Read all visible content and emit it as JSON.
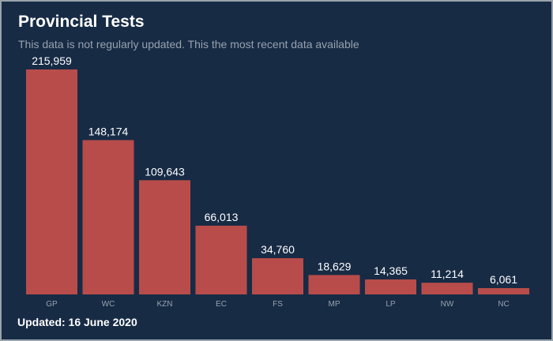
{
  "title": "Provincial Tests",
  "subtitle": "This data is not regularly updated. This the most recent data available",
  "footer": "Updated: 16 June 2020",
  "colors": {
    "background": "#172b45",
    "bar": "#b84c4a",
    "text": "#ffffff",
    "muted": "#98a2ad"
  },
  "chart_data": {
    "type": "bar",
    "categories": [
      "GP",
      "WC",
      "KZN",
      "EC",
      "FS",
      "MP",
      "LP",
      "NW",
      "NC"
    ],
    "values": [
      215959,
      148174,
      109643,
      66013,
      34760,
      18629,
      14365,
      11214,
      6061
    ],
    "value_labels": [
      "215,959",
      "148,174",
      "109,643",
      "66,013",
      "34,760",
      "18,629",
      "14,365",
      "11,214",
      "6,061"
    ],
    "grid": false,
    "legend": "none"
  }
}
